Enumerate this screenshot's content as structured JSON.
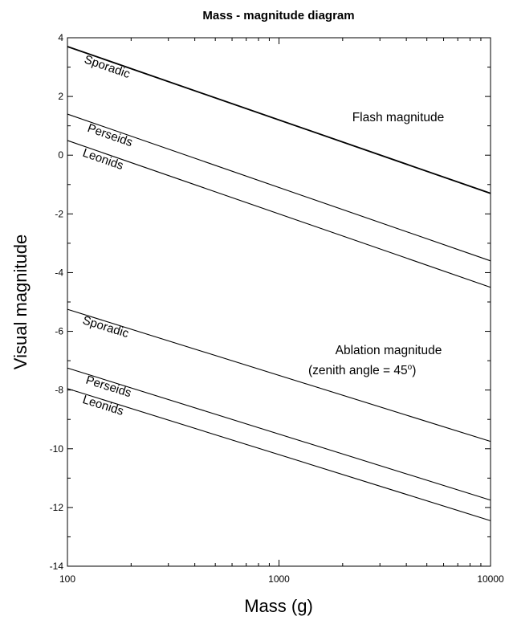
{
  "chart_data": {
    "type": "line",
    "title": "Mass - magnitude diagram",
    "xlabel": "Mass (g)",
    "ylabel": "Visual magnitude",
    "xscale": "log",
    "xlim": [
      100,
      10000
    ],
    "ylim": [
      -14,
      4
    ],
    "xticks": [
      100,
      1000,
      10000
    ],
    "xtick_labels": [
      "100",
      "1000",
      "10000"
    ],
    "yticks": [
      -14,
      -12,
      -10,
      -8,
      -6,
      -4,
      -2,
      0,
      2,
      4
    ],
    "ytick_labels": [
      "-14",
      "-12",
      "-10",
      "-8",
      "-6",
      "-4",
      "-2",
      "0",
      "2",
      "4"
    ],
    "grid": false,
    "series": [
      {
        "name": "Sporadic",
        "group": "flash",
        "x": [
          100,
          10000
        ],
        "y": [
          3.7,
          -1.3
        ]
      },
      {
        "name": "Perseids",
        "group": "flash",
        "x": [
          100,
          10000
        ],
        "y": [
          1.4,
          -3.6
        ]
      },
      {
        "name": "Leonids",
        "group": "flash",
        "x": [
          100,
          10000
        ],
        "y": [
          0.5,
          -4.5
        ]
      },
      {
        "name": "Sporadic",
        "group": "ablation",
        "x": [
          100,
          10000
        ],
        "y": [
          -5.25,
          -9.75
        ]
      },
      {
        "name": "Perseids",
        "group": "ablation",
        "x": [
          100,
          10000
        ],
        "y": [
          -7.25,
          -11.75
        ]
      },
      {
        "name": "Leonids",
        "group": "ablation",
        "x": [
          100,
          10000
        ],
        "y": [
          -7.95,
          -12.45
        ]
      }
    ],
    "annotations": [
      {
        "id": "flash",
        "text": "Flash magnitude"
      },
      {
        "id": "ablation_line1",
        "text": "Ablation magnitude"
      },
      {
        "id": "ablation_line2_prefix",
        "text": "(zenith angle = 45"
      },
      {
        "id": "ablation_line2_super",
        "text": "o"
      },
      {
        "id": "ablation_line2_suffix",
        "text": ")"
      }
    ]
  }
}
